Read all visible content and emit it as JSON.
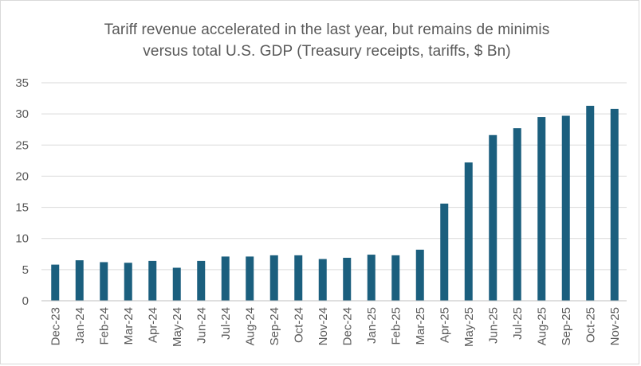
{
  "chart_data": {
    "type": "bar",
    "title_line1": "Tariff revenue accelerated in the last year, but remains de minimis",
    "title_line2": "versus total U.S. GDP (Treasury receipts, tariffs, $ Bn)",
    "xlabel": "",
    "ylabel": "",
    "ylim": [
      0,
      35
    ],
    "yticks": [
      "0",
      "5",
      "10",
      "15",
      "20",
      "25",
      "30",
      "35"
    ],
    "grid": true,
    "legend": "none",
    "bar_color": "#1B5F7E",
    "categories": [
      "Dec-23",
      "Jan-24",
      "Feb-24",
      "Mar-24",
      "Apr-24",
      "May-24",
      "Jun-24",
      "Jul-24",
      "Aug-24",
      "Sep-24",
      "Oct-24",
      "Nov-24",
      "Dec-24",
      "Jan-25",
      "Feb-25",
      "Mar-25",
      "Apr-25",
      "May-25",
      "Jun-25",
      "Jul-25",
      "Aug-25",
      "Sep-25",
      "Oct-25",
      "Nov-25"
    ],
    "values": [
      5.8,
      6.5,
      6.2,
      6.1,
      6.4,
      5.3,
      6.4,
      7.1,
      7.1,
      7.3,
      7.3,
      6.7,
      6.9,
      7.4,
      7.3,
      8.2,
      15.6,
      22.2,
      26.6,
      27.7,
      29.5,
      29.7,
      31.3,
      30.8
    ]
  }
}
